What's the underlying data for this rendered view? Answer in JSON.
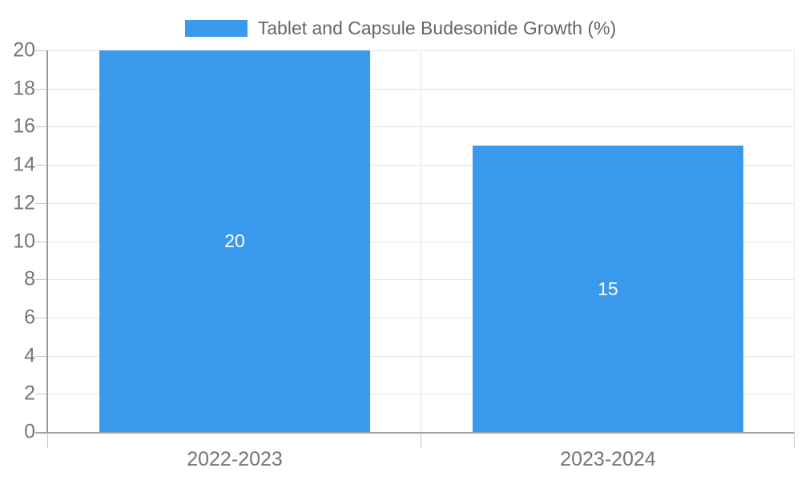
{
  "chart_data": {
    "type": "bar",
    "title": "Tablet and Capsule Budesonide Growth (%)",
    "categories": [
      "2022-2023",
      "2023-2024"
    ],
    "values": [
      20,
      15
    ],
    "xlabel": "",
    "ylabel": "",
    "ylim": [
      0,
      20
    ],
    "ytick_step": 2,
    "grid": true,
    "legend_position": "top",
    "bar_color": "#3999ec",
    "value_label_color": "#ffffff",
    "axis_label_color": "#757575",
    "gridline_color": "#e5e5e5"
  },
  "legend": {
    "label": "Tablet and Capsule Budesonide Growth (%)",
    "swatch_color": "#3999ec"
  }
}
